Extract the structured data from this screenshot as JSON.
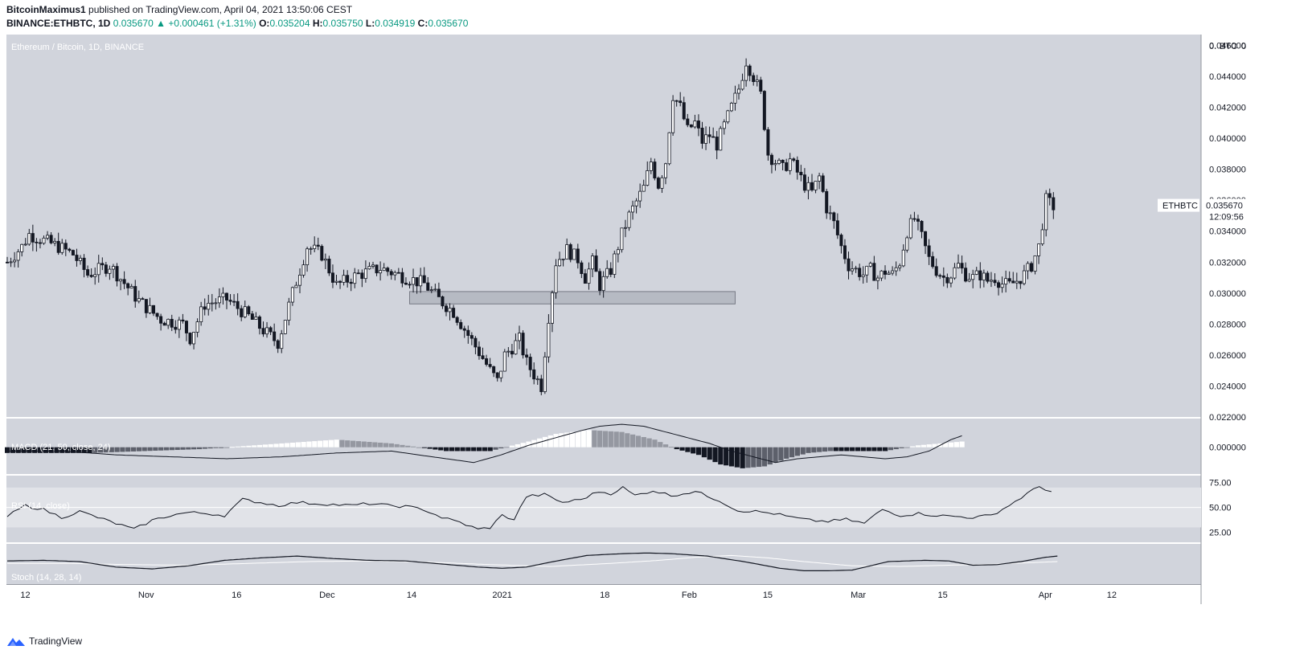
{
  "header": {
    "author": "BitcoinMaximus1",
    "published_text": "published on TradingView.com, April 04, 2021 13:50:06 CEST",
    "symbol_line": "BINANCE:ETHBTC, 1D",
    "last": "0.035670",
    "change_arrow": "▲",
    "change": "+0.000461 (+1.31%)",
    "o_label": "O:",
    "o_value": "0.035204",
    "h_label": "H:",
    "h_value": "0.035750",
    "l_label": "L:",
    "l_value": "0.034919",
    "c_label": "C:",
    "c_value": "0.035670"
  },
  "footer": {
    "brand": "TradingView",
    "logo_icon": "tradingview-logo-icon"
  },
  "colors": {
    "pane_bg": "#d1d4dc",
    "band_bg": "#e1e3e8",
    "candle_up": "#ffffff",
    "candle_down": "#131722",
    "zone_fill": "#b2b5be"
  },
  "chart_data": {
    "type": "candlestick",
    "main": {
      "title": "Ethereum / Bitcoin, 1D, BINANCE",
      "unit_label": "BTC",
      "unit_prefix": "0.",
      "unit_suffix": "0",
      "yticks": [
        "0.046000",
        "0.044000",
        "0.042000",
        "0.040000",
        "0.038000",
        "0.036000",
        "0.034000",
        "0.032000",
        "0.030000",
        "0.028000",
        "0.026000",
        "0.024000",
        "0.022000"
      ],
      "ylim": [
        0.022,
        0.0467
      ],
      "price_label": "ETHBTC",
      "price_value": "0.035670",
      "countdown": "12:09:56",
      "support_zone": {
        "y_low": 0.0293,
        "y_high": 0.0301,
        "x_start_day": 110,
        "x_end_day": 199
      },
      "anchors": [
        [
          0,
          0.032
        ],
        [
          4,
          0.033
        ],
        [
          6,
          0.0338
        ],
        [
          14,
          0.033
        ],
        [
          18,
          0.0325
        ],
        [
          22,
          0.0312
        ],
        [
          28,
          0.0318
        ],
        [
          36,
          0.0295
        ],
        [
          42,
          0.0283
        ],
        [
          48,
          0.028
        ],
        [
          50,
          0.0271
        ],
        [
          54,
          0.0293
        ],
        [
          60,
          0.0296
        ],
        [
          66,
          0.0285
        ],
        [
          70,
          0.0276
        ],
        [
          74,
          0.0268
        ],
        [
          78,
          0.03
        ],
        [
          82,
          0.033
        ],
        [
          86,
          0.0325
        ],
        [
          90,
          0.0305
        ],
        [
          96,
          0.0312
        ],
        [
          102,
          0.0316
        ],
        [
          108,
          0.0311
        ],
        [
          114,
          0.0306
        ],
        [
          118,
          0.0296
        ],
        [
          122,
          0.0288
        ],
        [
          126,
          0.0273
        ],
        [
          130,
          0.0258
        ],
        [
          132,
          0.025
        ],
        [
          134,
          0.0243
        ],
        [
          136,
          0.026
        ],
        [
          140,
          0.027
        ],
        [
          142,
          0.0255
        ],
        [
          146,
          0.024
        ],
        [
          148,
          0.0285
        ],
        [
          150,
          0.032
        ],
        [
          153,
          0.0328
        ],
        [
          156,
          0.0322
        ],
        [
          158,
          0.031
        ],
        [
          160,
          0.032
        ],
        [
          162,
          0.0305
        ],
        [
          165,
          0.0315
        ],
        [
          168,
          0.0338
        ],
        [
          170,
          0.035
        ],
        [
          174,
          0.0368
        ],
        [
          176,
          0.0385
        ],
        [
          178,
          0.037
        ],
        [
          180,
          0.0385
        ],
        [
          182,
          0.0428
        ],
        [
          184,
          0.042
        ],
        [
          186,
          0.0405
        ],
        [
          188,
          0.041
        ],
        [
          190,
          0.0398
        ],
        [
          192,
          0.0402
        ],
        [
          194,
          0.0396
        ],
        [
          196,
          0.0408
        ],
        [
          198,
          0.042
        ],
        [
          200,
          0.0432
        ],
        [
          202,
          0.045
        ],
        [
          204,
          0.044
        ],
        [
          206,
          0.0428
        ],
        [
          208,
          0.039
        ],
        [
          210,
          0.0385
        ],
        [
          212,
          0.038
        ],
        [
          214,
          0.0386
        ],
        [
          216,
          0.0378
        ],
        [
          218,
          0.037
        ],
        [
          220,
          0.0365
        ],
        [
          222,
          0.0375
        ],
        [
          224,
          0.0355
        ],
        [
          226,
          0.0345
        ],
        [
          228,
          0.033
        ],
        [
          230,
          0.0318
        ],
        [
          232,
          0.0315
        ],
        [
          234,
          0.0312
        ],
        [
          236,
          0.0315
        ],
        [
          238,
          0.031
        ],
        [
          240,
          0.0314
        ],
        [
          242,
          0.0312
        ],
        [
          244,
          0.032
        ],
        [
          246,
          0.034
        ],
        [
          248,
          0.0348
        ],
        [
          250,
          0.0336
        ],
        [
          252,
          0.0322
        ],
        [
          254,
          0.0315
        ],
        [
          256,
          0.031
        ],
        [
          258,
          0.0312
        ],
        [
          260,
          0.0318
        ],
        [
          262,
          0.0312
        ],
        [
          264,
          0.031
        ],
        [
          266,
          0.0312
        ],
        [
          268,
          0.0308
        ],
        [
          270,
          0.031
        ],
        [
          272,
          0.0306
        ],
        [
          274,
          0.0305
        ],
        [
          276,
          0.0308
        ],
        [
          278,
          0.0312
        ],
        [
          280,
          0.0318
        ],
        [
          282,
          0.033
        ],
        [
          284,
          0.036
        ],
        [
          286,
          0.0356
        ]
      ],
      "seed": 7
    },
    "x_axis": {
      "labels": [
        {
          "day": 3,
          "text": "12"
        },
        {
          "day": 23,
          "text": "Nov"
        },
        {
          "day": 38,
          "text": "16"
        },
        {
          "day": 53,
          "text": "Dec"
        },
        {
          "day": 67,
          "text": "14"
        },
        {
          "day": 82,
          "text": "2021"
        },
        {
          "day": 99,
          "text": "18"
        },
        {
          "day": 113,
          "text": "Feb"
        },
        {
          "day": 126,
          "text": "15"
        },
        {
          "day": 141,
          "text": "Mar"
        },
        {
          "day": 155,
          "text": "15"
        },
        {
          "day": 172,
          "text": "Apr"
        },
        {
          "day": 183,
          "text": "12"
        }
      ]
    },
    "macd": {
      "title": "MACD (21, 50, close, 24)",
      "ytick": "0.000000",
      "line_anchors": [
        [
          0,
          -0.0002
        ],
        [
          10,
          -0.0002
        ],
        [
          20,
          -0.0004
        ],
        [
          30,
          -0.0005
        ],
        [
          40,
          -0.0006
        ],
        [
          50,
          -0.0005
        ],
        [
          60,
          -0.0003
        ],
        [
          70,
          -0.0002
        ],
        [
          80,
          -0.0006
        ],
        [
          85,
          -0.0008
        ],
        [
          90,
          -0.0004
        ],
        [
          95,
          0.0001
        ],
        [
          100,
          0.0005
        ],
        [
          105,
          0.0009
        ],
        [
          108,
          0.0011
        ],
        [
          112,
          0.0012
        ],
        [
          116,
          0.0011
        ],
        [
          120,
          0.0008
        ],
        [
          124,
          0.0005
        ],
        [
          128,
          0.0002
        ],
        [
          132,
          -0.0002
        ],
        [
          136,
          -0.0005
        ],
        [
          140,
          -0.0008
        ],
        [
          144,
          -0.0006
        ],
        [
          148,
          -0.0005
        ],
        [
          152,
          -0.0004
        ],
        [
          156,
          -0.0005
        ],
        [
          160,
          -0.0006
        ],
        [
          164,
          -0.0005
        ],
        [
          168,
          -0.0002
        ],
        [
          172,
          0.0004
        ],
        [
          174,
          0.0006
        ]
      ],
      "hist_anchors": [
        [
          0,
          -0.0003
        ],
        [
          15,
          -0.0003
        ],
        [
          35,
          -0.0001
        ],
        [
          50,
          0.0002
        ],
        [
          60,
          0.0004
        ],
        [
          70,
          0.0002
        ],
        [
          80,
          -0.0002
        ],
        [
          88,
          -0.0002
        ],
        [
          95,
          0.0003
        ],
        [
          100,
          0.0007
        ],
        [
          106,
          0.0009
        ],
        [
          112,
          0.0008
        ],
        [
          118,
          0.0004
        ],
        [
          122,
          -0.0001
        ],
        [
          126,
          -0.0004
        ],
        [
          130,
          -0.0009
        ],
        [
          134,
          -0.0011
        ],
        [
          138,
          -0.001
        ],
        [
          142,
          -0.0006
        ],
        [
          146,
          -0.0003
        ],
        [
          150,
          -0.0002
        ],
        [
          155,
          -0.0002
        ],
        [
          160,
          -0.0002
        ],
        [
          166,
          0.0001
        ],
        [
          174,
          0.0003
        ]
      ],
      "range": [
        -0.0014,
        0.0015
      ]
    },
    "rsi": {
      "title": "RSI (14, close)",
      "yticks": [
        "75.00",
        "50.00",
        "25.00"
      ],
      "anchors": [
        [
          0,
          41
        ],
        [
          3,
          52
        ],
        [
          6,
          48
        ],
        [
          9,
          40
        ],
        [
          12,
          46
        ],
        [
          15,
          40
        ],
        [
          18,
          34
        ],
        [
          21,
          28
        ],
        [
          24,
          37
        ],
        [
          27,
          42
        ],
        [
          30,
          45
        ],
        [
          33,
          44
        ],
        [
          36,
          42
        ],
        [
          39,
          58
        ],
        [
          42,
          55
        ],
        [
          45,
          52
        ],
        [
          48,
          55
        ],
        [
          51,
          54
        ],
        [
          54,
          53
        ],
        [
          57,
          52
        ],
        [
          60,
          54
        ],
        [
          63,
          52
        ],
        [
          66,
          51
        ],
        [
          69,
          48
        ],
        [
          72,
          40
        ],
        [
          75,
          35
        ],
        [
          78,
          28
        ],
        [
          80,
          30
        ],
        [
          82,
          42
        ],
        [
          84,
          38
        ],
        [
          86,
          61
        ],
        [
          89,
          63
        ],
        [
          92,
          55
        ],
        [
          95,
          58
        ],
        [
          98,
          66
        ],
        [
          100,
          64
        ],
        [
          102,
          70
        ],
        [
          104,
          62
        ],
        [
          107,
          67
        ],
        [
          110,
          62
        ],
        [
          114,
          66
        ],
        [
          118,
          57
        ],
        [
          121,
          47
        ],
        [
          124,
          46
        ],
        [
          127,
          44
        ],
        [
          130,
          40
        ],
        [
          133,
          37
        ],
        [
          136,
          36
        ],
        [
          139,
          38
        ],
        [
          142,
          34
        ],
        [
          145,
          48
        ],
        [
          148,
          42
        ],
        [
          151,
          44
        ],
        [
          154,
          42
        ],
        [
          157,
          41
        ],
        [
          160,
          40
        ],
        [
          163,
          42
        ],
        [
          166,
          52
        ],
        [
          169,
          64
        ],
        [
          171,
          71
        ],
        [
          173,
          66
        ]
      ],
      "range": [
        15,
        82
      ]
    },
    "stoch": {
      "title": "Stoch (14, 28, 14)",
      "k_anchors": [
        [
          0,
          60
        ],
        [
          6,
          62
        ],
        [
          12,
          58
        ],
        [
          18,
          40
        ],
        [
          24,
          34
        ],
        [
          30,
          44
        ],
        [
          36,
          62
        ],
        [
          42,
          70
        ],
        [
          48,
          76
        ],
        [
          54,
          68
        ],
        [
          60,
          62
        ],
        [
          66,
          60
        ],
        [
          72,
          50
        ],
        [
          78,
          40
        ],
        [
          82,
          36
        ],
        [
          86,
          40
        ],
        [
          90,
          56
        ],
        [
          96,
          78
        ],
        [
          102,
          84
        ],
        [
          106,
          86
        ],
        [
          110,
          84
        ],
        [
          116,
          76
        ],
        [
          122,
          58
        ],
        [
          128,
          36
        ],
        [
          132,
          28
        ],
        [
          136,
          28
        ],
        [
          140,
          30
        ],
        [
          146,
          58
        ],
        [
          152,
          62
        ],
        [
          156,
          60
        ],
        [
          160,
          46
        ],
        [
          164,
          48
        ],
        [
          168,
          58
        ],
        [
          172,
          72
        ],
        [
          174,
          76
        ]
      ],
      "d_anchors": [
        [
          0,
          52
        ],
        [
          10,
          52
        ],
        [
          20,
          48
        ],
        [
          30,
          46
        ],
        [
          40,
          52
        ],
        [
          50,
          58
        ],
        [
          60,
          60
        ],
        [
          70,
          56
        ],
        [
          80,
          48
        ],
        [
          90,
          42
        ],
        [
          100,
          52
        ],
        [
          108,
          62
        ],
        [
          114,
          72
        ],
        [
          120,
          78
        ],
        [
          126,
          70
        ],
        [
          132,
          58
        ],
        [
          140,
          44
        ],
        [
          148,
          42
        ],
        [
          156,
          46
        ],
        [
          164,
          50
        ],
        [
          174,
          58
        ]
      ],
      "range": [
        0,
        100
      ]
    }
  }
}
